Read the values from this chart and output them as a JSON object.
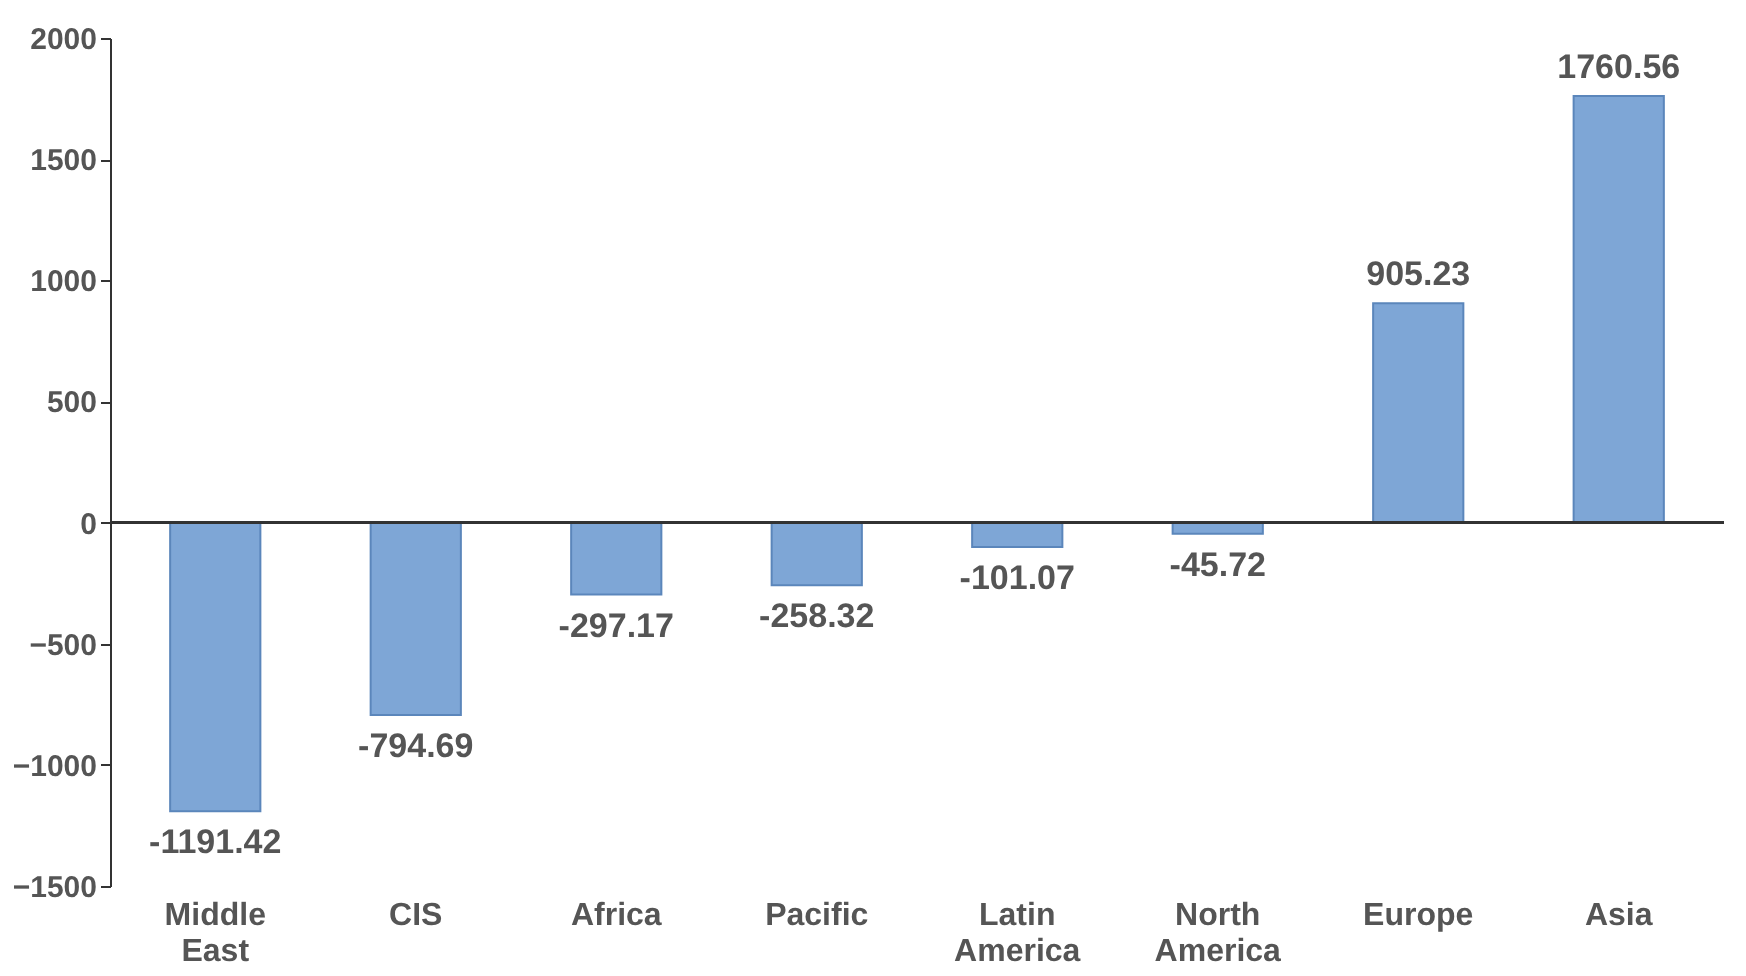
{
  "chart_data": {
    "type": "bar",
    "categories": [
      "Middle East",
      "CIS",
      "Africa",
      "Pacific",
      "Latin America",
      "North America",
      "Europe",
      "Asia"
    ],
    "values": [
      -1191.42,
      -794.69,
      -297.17,
      -258.32,
      -101.07,
      -45.72,
      905.23,
      1760.56
    ],
    "color": "#7ea6d6",
    "ylim": [
      -1500,
      2000
    ],
    "yticks": [
      -1500,
      -1000,
      -500,
      0,
      500,
      1000,
      1500,
      2000
    ],
    "grid": false,
    "data_labels": true,
    "ref_lines": [
      {
        "axis": "y",
        "value": 0,
        "color": "#333333",
        "line_style": "solid"
      }
    ]
  }
}
